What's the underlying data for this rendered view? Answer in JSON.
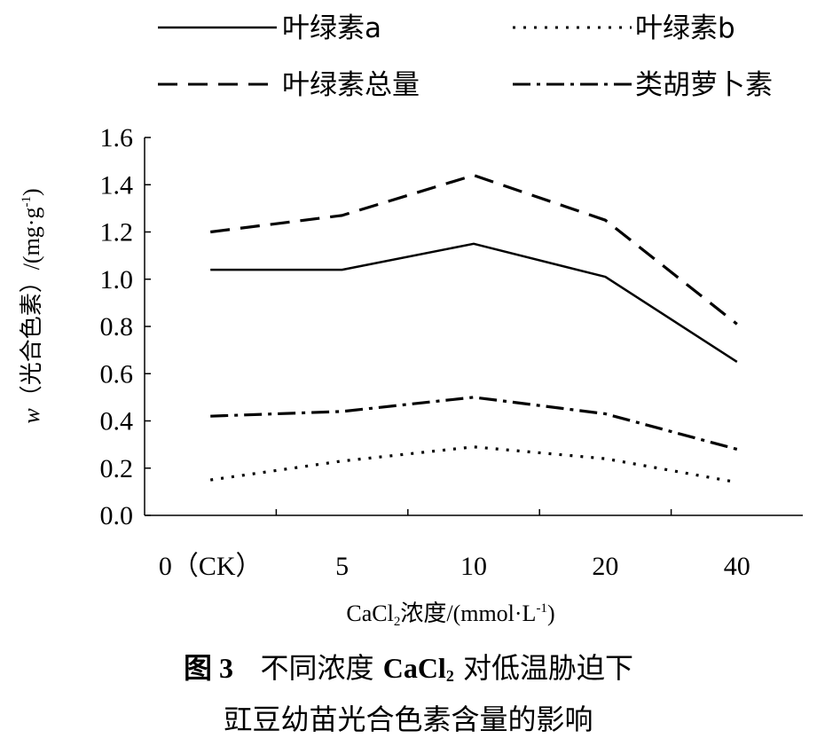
{
  "chart_data": {
    "type": "line",
    "categories": [
      "0（CK）",
      "5",
      "10",
      "20",
      "40"
    ],
    "series": [
      {
        "name": "叶绿素a",
        "style": "solid",
        "values": [
          1.04,
          1.04,
          1.15,
          1.01,
          0.65
        ]
      },
      {
        "name": "叶绿素b",
        "style": "dotted",
        "values": [
          0.15,
          0.23,
          0.29,
          0.24,
          0.14
        ]
      },
      {
        "name": "叶绿素总量",
        "style": "dashed",
        "values": [
          1.2,
          1.27,
          1.44,
          1.25,
          0.81
        ]
      },
      {
        "name": "类胡萝卜素",
        "style": "dashdot",
        "values": [
          0.42,
          0.44,
          0.5,
          0.43,
          0.28
        ]
      }
    ],
    "xlabel": {
      "main": "CaCl",
      "sub": "2",
      "rest": "浓度/(mmol·L",
      "sup": "-1",
      "close": ")"
    },
    "ylabel": {
      "italic": "w",
      "rest": "（光合色素）/(mg·g",
      "sup": "-1",
      "close": ")"
    },
    "ylim": [
      0,
      1.6
    ],
    "yticks": [
      "0.0",
      "0.2",
      "0.4",
      "0.6",
      "0.8",
      "1.0",
      "1.2",
      "1.4",
      "1.6"
    ],
    "grid": false,
    "legend_position": "top"
  },
  "caption": {
    "fig": "图 3",
    "line1_a": "不同浓度 ",
    "line1_chem": "CaCl",
    "line1_sub": "2",
    "line1_b": " 对低温胁迫下",
    "line2": "豇豆幼苗光合色素含量的影响"
  }
}
